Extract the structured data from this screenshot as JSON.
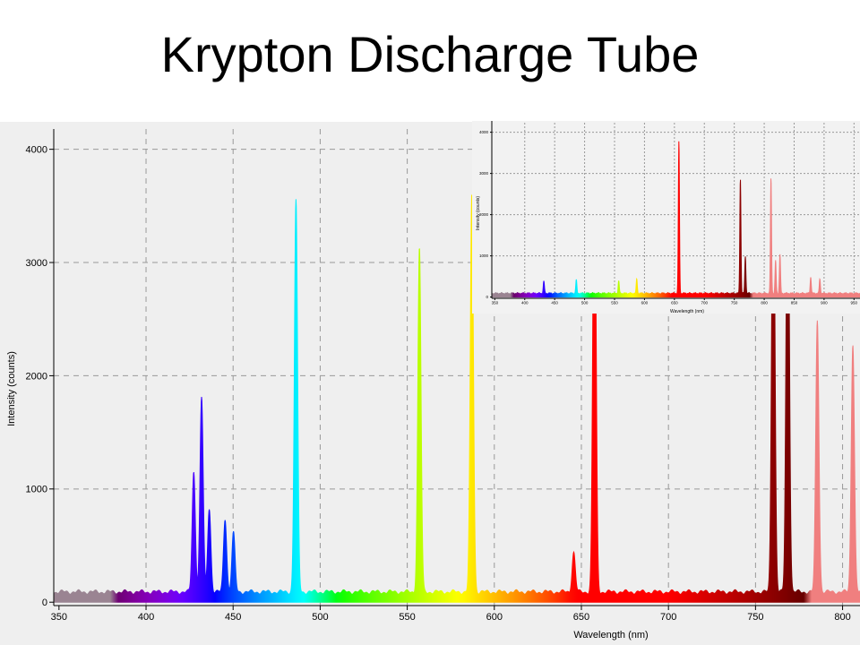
{
  "title": "Krypton Discharge Tube",
  "chart_data": [
    {
      "type": "line",
      "xlabel": "Wavelength (nm)",
      "ylabel": "Intensity (counts)",
      "xlim": [
        347,
        810
      ],
      "ylim": [
        -30,
        4100
      ],
      "x_ticks": [
        350,
        400,
        450,
        500,
        550,
        600,
        650,
        700,
        750,
        800
      ],
      "y_ticks": [
        0,
        1000,
        2000,
        3000,
        4000
      ],
      "grid": true,
      "fill": "wavelength-spectrum",
      "baseline": 90,
      "peaks": [
        {
          "x": 427.4,
          "y": 1060
        },
        {
          "x": 431.9,
          "y": 1720
        },
        {
          "x": 436.3,
          "y": 740
        },
        {
          "x": 445.4,
          "y": 650
        },
        {
          "x": 450.2,
          "y": 520
        },
        {
          "x": 486.1,
          "y": 3460
        },
        {
          "x": 557.0,
          "y": 3040
        },
        {
          "x": 587.1,
          "y": 3520
        },
        {
          "x": 645.6,
          "y": 350
        },
        {
          "x": 657.5,
          "y": 4200
        },
        {
          "x": 760.2,
          "y": 4200
        },
        {
          "x": 768.5,
          "y": 4200
        },
        {
          "x": 785.5,
          "y": 2400
        },
        {
          "x": 805.9,
          "y": 2200
        }
      ]
    },
    {
      "type": "line",
      "role": "inset",
      "xlabel": "Wavelength (nm)",
      "ylabel": "Intensity (counts)",
      "xlim": [
        345,
        960
      ],
      "ylim": [
        -30,
        4100
      ],
      "x_ticks": [
        350,
        400,
        450,
        500,
        550,
        600,
        650,
        700,
        750,
        800,
        850,
        900,
        950
      ],
      "y_ticks": [
        0,
        1000,
        2000,
        3000,
        4000
      ],
      "grid": true,
      "fill": "wavelength-spectrum",
      "baseline": 90,
      "peaks": [
        {
          "x": 431.9,
          "y": 300
        },
        {
          "x": 486.1,
          "y": 330
        },
        {
          "x": 557.0,
          "y": 300
        },
        {
          "x": 587.1,
          "y": 350
        },
        {
          "x": 657.5,
          "y": 3700
        },
        {
          "x": 760.2,
          "y": 2800
        },
        {
          "x": 768.5,
          "y": 900
        },
        {
          "x": 811.3,
          "y": 2800
        },
        {
          "x": 819.0,
          "y": 800
        },
        {
          "x": 826.3,
          "y": 950
        },
        {
          "x": 877.7,
          "y": 400
        },
        {
          "x": 892.9,
          "y": 350
        }
      ]
    }
  ]
}
